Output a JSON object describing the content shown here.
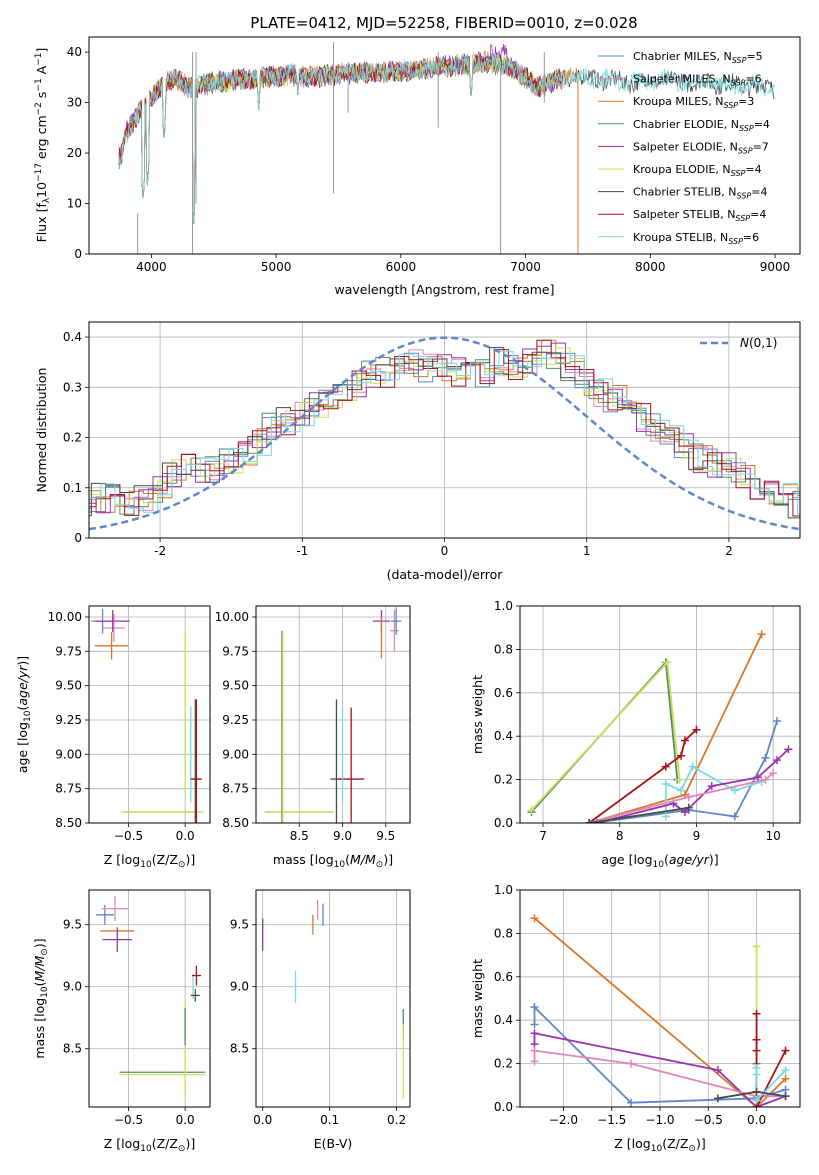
{
  "figure_title": "PLATE=0412, MJD=52258, FIBERID=0010, z=0.028",
  "colors": {
    "cm": "#5f87cc",
    "sm": "#e187b8",
    "km": "#d9772a",
    "ce": "#5a8a68",
    "se": "#9a33b0",
    "ke": "#cbe05a",
    "cs": "#4a4a4a",
    "ss": "#a51414",
    "ks": "#7cd9de",
    "gauss": "#5f87cc"
  },
  "chart_data": [
    {
      "id": "spectrum",
      "type": "line",
      "xlabel": "wavelength [Angstrom, rest frame]",
      "ylabel": "Flux [f",
      "xlim": [
        3500,
        9200
      ],
      "ylim": [
        0,
        43
      ],
      "xticks": [
        4000,
        5000,
        6000,
        7000,
        8000,
        9000
      ],
      "yticks": [
        0,
        10,
        20,
        30,
        40
      ],
      "grid": false,
      "legend_position": "upper-right",
      "continuum": {
        "x": [
          3750,
          3800,
          3900,
          4000,
          4100,
          4200,
          4300,
          4400,
          4500,
          4700,
          4900,
          5100,
          5300,
          5500,
          5700,
          5900,
          6100,
          6300,
          6500,
          6700,
          6900,
          7100,
          7300,
          7500,
          7800,
          8100,
          8400,
          8700,
          9000
        ],
        "y": [
          19,
          24,
          28,
          31,
          34,
          34.5,
          33,
          33.5,
          34,
          34.5,
          35,
          35.5,
          35,
          35.5,
          36,
          36,
          36.5,
          37,
          37.5,
          38,
          37,
          33,
          35,
          35,
          34,
          34.5,
          34,
          33.5,
          33
        ]
      },
      "series": [
        {
          "key": "cm",
          "name": "Chabrier MILES, N",
          "nssp": "5"
        },
        {
          "key": "sm",
          "name": "Salpeter MILES, N",
          "nssp": "6"
        },
        {
          "key": "km",
          "name": "Kroupa MILES, N",
          "nssp": "3"
        },
        {
          "key": "ce",
          "name": "Chabrier ELODIE, N",
          "nssp": "4"
        },
        {
          "key": "se",
          "name": "Salpeter ELODIE, N",
          "nssp": "7"
        },
        {
          "key": "ke",
          "name": "Kroupa ELODIE, N",
          "nssp": "4"
        },
        {
          "key": "cs",
          "name": "Chabrier STELIB, N",
          "nssp": "4"
        },
        {
          "key": "ss",
          "name": "Salpeter STELIB, N",
          "nssp": "4"
        },
        {
          "key": "ks",
          "name": "Kroupa STELIB, N",
          "nssp": "6"
        }
      ]
    },
    {
      "id": "residuals",
      "type": "histogram",
      "xlabel": "(data-model)/error",
      "ylabel": "Normed distribution",
      "xlim": [
        -2.5,
        2.5
      ],
      "ylim": [
        0,
        0.43
      ],
      "xticks": [
        -2,
        -1,
        0,
        1,
        2
      ],
      "yticks": [
        0.0,
        0.1,
        0.2,
        0.3,
        0.4
      ],
      "grid": true,
      "legend_position": "upper-right",
      "legend": [
        {
          "label": "N(0,1)"
        }
      ],
      "bin_width": 0.1,
      "base_values": [
        0.06,
        0.07,
        0.07,
        0.08,
        0.08,
        0.07,
        0.08,
        0.1,
        0.13,
        0.14,
        0.14,
        0.14,
        0.15,
        0.17,
        0.19,
        0.22,
        0.23,
        0.25,
        0.26,
        0.28,
        0.3,
        0.31,
        0.33,
        0.33,
        0.34,
        0.35,
        0.34,
        0.34,
        0.33,
        0.33,
        0.33,
        0.35,
        0.34,
        0.35,
        0.37,
        0.36,
        0.34,
        0.31,
        0.29,
        0.28,
        0.26,
        0.24,
        0.22,
        0.2,
        0.18,
        0.16,
        0.15,
        0.14,
        0.12,
        0.1,
        0.09,
        0.08,
        0.07,
        0.06,
        0.05
      ]
    },
    {
      "id": "age-vs-z",
      "type": "errorbar",
      "xlabel": "Z [log",
      "ylabel": "age  [log",
      "xlim": [
        -0.85,
        0.22
      ],
      "ylim": [
        8.5,
        10.08
      ],
      "xticks": [
        -0.5,
        0.0
      ],
      "xticklabels": [
        "−0.5",
        "0.0"
      ],
      "yticks": [
        8.5,
        8.75,
        9.0,
        9.25,
        9.5,
        9.75,
        10.0
      ],
      "yticklabels": [
        "8.50",
        "8.75",
        "9.00",
        "9.25",
        "9.50",
        "9.75",
        "10.00"
      ],
      "grid": true,
      "points": [
        {
          "key": "cm",
          "x": -0.73,
          "y": 9.97,
          "xerr": 0.1,
          "yerr": 0.09
        },
        {
          "key": "sm",
          "x": -0.63,
          "y": 9.92,
          "xerr": 0.1,
          "yerr": 0.1
        },
        {
          "key": "se",
          "x": -0.64,
          "y": 9.97,
          "xerr": 0.15,
          "yerr": 0.08
        },
        {
          "key": "km",
          "x": -0.65,
          "y": 9.79,
          "xerr": 0.15,
          "yerr": 0.1
        },
        {
          "key": "ce",
          "x": -0.22,
          "y": 8.58,
          "xerr": 0.32,
          "yerr": 0.0
        },
        {
          "key": "ke",
          "x": -0.2,
          "y": 8.58,
          "xerr": 0.37,
          "yerr": 0.0
        },
        {
          "key": "ke",
          "x": 0.0,
          "y": 9.3,
          "xerr": 0.0,
          "yerr": 0.6
        },
        {
          "key": "ks",
          "x": 0.05,
          "y": 9.0,
          "xerr": 0.0,
          "yerr": 0.35
        },
        {
          "key": "cs",
          "x": 0.09,
          "y": 8.82,
          "xerr": 0.04,
          "yerr": 0.58
        },
        {
          "key": "ss",
          "x": 0.1,
          "y": 8.82,
          "xerr": 0.05,
          "yerr": 0.58
        }
      ]
    },
    {
      "id": "age-vs-mass",
      "type": "errorbar",
      "xlabel": "mass [log",
      "ylabel": "",
      "xlim": [
        8.0,
        9.78
      ],
      "ylim": [
        8.5,
        10.08
      ],
      "xticks": [
        8.5,
        9.0,
        9.5
      ],
      "xticklabels": [
        "8.5",
        "9.0",
        "9.5"
      ],
      "yticks": [
        8.5,
        8.75,
        9.0,
        9.25,
        9.5,
        9.75,
        10.0
      ],
      "yticklabels": [
        "8.50",
        "8.75",
        "9.00",
        "9.25",
        "9.50",
        "9.75",
        "10.00"
      ],
      "grid": true,
      "points": [
        {
          "key": "ce",
          "x": 8.5,
          "y": 8.58,
          "xerr": 0.4,
          "yerr": 0.0
        },
        {
          "key": "ke",
          "x": 8.5,
          "y": 8.58,
          "xerr": 0.4,
          "yerr": 0.0
        },
        {
          "key": "ce",
          "x": 8.3,
          "y": 9.2,
          "xerr": 0.0,
          "yerr": 0.7
        },
        {
          "key": "ke",
          "x": 8.31,
          "y": 9.2,
          "xerr": 0.0,
          "yerr": 0.7
        },
        {
          "key": "cs",
          "x": 8.93,
          "y": 8.82,
          "xerr": 0.07,
          "yerr": 0.58
        },
        {
          "key": "ss",
          "x": 9.1,
          "y": 8.82,
          "xerr": 0.15,
          "yerr": 0.52
        },
        {
          "key": "ks",
          "x": 9.0,
          "y": 9.0,
          "xerr": 0.0,
          "yerr": 0.35
        },
        {
          "key": "se",
          "x": 9.45,
          "y": 9.97,
          "xerr": 0.1,
          "yerr": 0.08
        },
        {
          "key": "km",
          "x": 9.45,
          "y": 9.85,
          "xerr": 0.0,
          "yerr": 0.15
        },
        {
          "key": "sm",
          "x": 9.6,
          "y": 9.9,
          "xerr": 0.05,
          "yerr": 0.15
        },
        {
          "key": "cm",
          "x": 9.62,
          "y": 9.97,
          "xerr": 0.06,
          "yerr": 0.1
        }
      ]
    },
    {
      "id": "weight-vs-age",
      "type": "line",
      "xlabel": "age  [log",
      "ylabel": "mass weight",
      "xlim": [
        6.7,
        10.35
      ],
      "ylim": [
        0,
        1
      ],
      "xticks": [
        7,
        8,
        9,
        10
      ],
      "xticklabels": [
        "7",
        "8",
        "9",
        "10"
      ],
      "yticks": [
        0,
        0.2,
        0.4,
        0.6,
        0.8,
        1.0
      ],
      "yticklabels": [
        "0.0",
        "0.2",
        "0.4",
        "0.6",
        "0.8",
        "1.0"
      ],
      "grid": true,
      "series": [
        {
          "key": "ce",
          "x": [
            6.85,
            8.6,
            8.75
          ],
          "y": [
            0.05,
            0.74,
            0.2
          ]
        },
        {
          "key": "ke",
          "x": [
            6.85,
            8.62,
            8.78
          ],
          "y": [
            0.06,
            0.74,
            0.2
          ]
        },
        {
          "key": "km",
          "x": [
            7.6,
            8.85,
            9.85
          ],
          "y": [
            0.0,
            0.13,
            0.87
          ]
        },
        {
          "key": "cm",
          "x": [
            7.65,
            8.9,
            9.5,
            9.9,
            10.05
          ],
          "y": [
            0.0,
            0.06,
            0.03,
            0.3,
            0.47
          ]
        },
        {
          "key": "ss",
          "x": [
            7.6,
            8.6,
            8.8,
            8.85,
            9.0
          ],
          "y": [
            0.0,
            0.26,
            0.31,
            0.38,
            0.43
          ]
        },
        {
          "key": "ks",
          "x": [
            8.6,
            8.6,
            8.8,
            8.95,
            9.5,
            9.85
          ],
          "y": [
            0.03,
            0.18,
            0.15,
            0.26,
            0.15,
            0.19
          ]
        },
        {
          "key": "se",
          "x": [
            7.7,
            8.7,
            8.85,
            9.2,
            9.8,
            10.05,
            10.2
          ],
          "y": [
            0.0,
            0.09,
            0.05,
            0.17,
            0.21,
            0.29,
            0.34
          ]
        },
        {
          "key": "sm",
          "x": [
            7.6,
            8.9,
            9.9,
            10.0
          ],
          "y": [
            0.0,
            0.12,
            0.2,
            0.23
          ]
        },
        {
          "key": "cs",
          "x": [
            7.6,
            8.9
          ],
          "y": [
            0.0,
            0.07
          ]
        }
      ]
    },
    {
      "id": "mass-vs-z",
      "type": "errorbar",
      "xlabel": "Z [log",
      "ylabel": "mass [log",
      "xlim": [
        -0.85,
        0.22
      ],
      "ylim": [
        8.03,
        9.78
      ],
      "xticks": [
        -0.5,
        0.0
      ],
      "xticklabels": [
        "−0.5",
        "0.0"
      ],
      "yticks": [
        8.5,
        9.0,
        9.5
      ],
      "yticklabels": [
        "8.5",
        "9.0",
        "9.5"
      ],
      "grid": true,
      "points": [
        {
          "key": "cm",
          "x": -0.71,
          "y": 9.58,
          "xerr": 0.08,
          "yerr": 0.08
        },
        {
          "key": "sm",
          "x": -0.62,
          "y": 9.63,
          "xerr": 0.12,
          "yerr": 0.1
        },
        {
          "key": "km",
          "x": -0.6,
          "y": 9.45,
          "xerr": 0.15,
          "yerr": 0.0
        },
        {
          "key": "se",
          "x": -0.6,
          "y": 9.38,
          "xerr": 0.13,
          "yerr": 0.1
        },
        {
          "key": "ce",
          "x": -0.2,
          "y": 8.31,
          "xerr": 0.38,
          "yerr": 0.0
        },
        {
          "key": "ke",
          "x": -0.2,
          "y": 8.29,
          "xerr": 0.38,
          "yerr": 0.0
        },
        {
          "key": "ke",
          "x": 0.0,
          "y": 8.5,
          "xerr": 0.0,
          "yerr": 0.4
        },
        {
          "key": "ce",
          "x": 0.0,
          "y": 8.68,
          "xerr": 0.0,
          "yerr": 0.15
        },
        {
          "key": "ks",
          "x": 0.07,
          "y": 9.0,
          "xerr": 0.0,
          "yerr": 0.1
        },
        {
          "key": "cs",
          "x": 0.09,
          "y": 8.93,
          "xerr": 0.04,
          "yerr": 0.05
        },
        {
          "key": "ss",
          "x": 0.1,
          "y": 9.09,
          "xerr": 0.04,
          "yerr": 0.08
        }
      ]
    },
    {
      "id": "mass-vs-ebv",
      "type": "errorbar",
      "xlabel": "E(B-V)",
      "ylabel": "",
      "xlim": [
        -0.01,
        0.22
      ],
      "ylim": [
        8.03,
        9.78
      ],
      "xticks": [
        0.0,
        0.1,
        0.2
      ],
      "xticklabels": [
        "0.0",
        "0.1",
        "0.2"
      ],
      "yticks": [
        8.5,
        9.0,
        9.5
      ],
      "yticklabels": [
        "8.5",
        "9.0",
        "9.5"
      ],
      "grid": true,
      "points": [
        {
          "key": "se",
          "x": 0.0,
          "y": 9.42,
          "xerr": 0.0,
          "yerr": 0.13
        },
        {
          "key": "ks",
          "x": 0.049,
          "y": 9.0,
          "xerr": 0.0,
          "yerr": 0.13
        },
        {
          "key": "km",
          "x": 0.075,
          "y": 9.5,
          "xerr": 0.0,
          "yerr": 0.08
        },
        {
          "key": "sm",
          "x": 0.082,
          "y": 9.62,
          "xerr": 0.0,
          "yerr": 0.08
        },
        {
          "key": "cm",
          "x": 0.09,
          "y": 9.58,
          "xerr": 0.0,
          "yerr": 0.09
        },
        {
          "key": "ce",
          "x": 0.21,
          "y": 8.7,
          "xerr": 0.0,
          "yerr": 0.12
        },
        {
          "key": "ke",
          "x": 0.21,
          "y": 8.4,
          "xerr": 0.0,
          "yerr": 0.3
        }
      ]
    },
    {
      "id": "weight-vs-z",
      "type": "line",
      "xlabel": "Z [log",
      "ylabel": "mass weight",
      "xlim": [
        -2.45,
        0.45
      ],
      "ylim": [
        0,
        1
      ],
      "xticks": [
        -2.0,
        -1.5,
        -1.0,
        -0.5,
        0.0
      ],
      "xticklabels": [
        "−2.0",
        "−1.5",
        "−1.0",
        "−0.5",
        "0.0"
      ],
      "yticks": [
        0,
        0.2,
        0.4,
        0.6,
        0.8,
        1.0
      ],
      "yticklabels": [
        "0.0",
        "0.2",
        "0.4",
        "0.6",
        "0.8",
        "1.0"
      ],
      "grid": true,
      "series": [
        {
          "key": "km",
          "x": [
            -2.3,
            0.0,
            0.3
          ],
          "y": [
            0.87,
            0.0,
            0.13
          ]
        },
        {
          "key": "cm",
          "x": [
            -2.3,
            -2.3,
            -1.3,
            0.0,
            0.3
          ],
          "y": [
            0.38,
            0.46,
            0.02,
            0.04,
            0.08
          ]
        },
        {
          "key": "se",
          "x": [
            -2.3,
            -2.3,
            -0.4,
            0.0,
            0.3
          ],
          "y": [
            0.29,
            0.34,
            0.17,
            0.0,
            0.05
          ]
        },
        {
          "key": "sm",
          "x": [
            -2.3,
            -2.3,
            -1.3,
            0.0,
            0.3
          ],
          "y": [
            0.21,
            0.26,
            0.2,
            0.05,
            0.05
          ]
        },
        {
          "key": "ke",
          "x": [
            0.0,
            0.0
          ],
          "y": [
            0.0,
            0.74
          ]
        },
        {
          "key": "ce",
          "x": [
            0.0,
            0.0
          ],
          "y": [
            0.0,
            0.2
          ]
        },
        {
          "key": "ss",
          "x": [
            0.0,
            0.0,
            0.0,
            0.0,
            0.3
          ],
          "y": [
            0.43,
            0.31,
            0.26,
            0.0,
            0.26
          ]
        },
        {
          "key": "ks",
          "x": [
            0.0,
            0.0,
            0.0,
            0.3
          ],
          "y": [
            0.18,
            0.15,
            0.03,
            0.17
          ]
        },
        {
          "key": "cs",
          "x": [
            -0.4,
            0.0,
            0.3
          ],
          "y": [
            0.04,
            0.07,
            0.05
          ]
        }
      ]
    }
  ]
}
